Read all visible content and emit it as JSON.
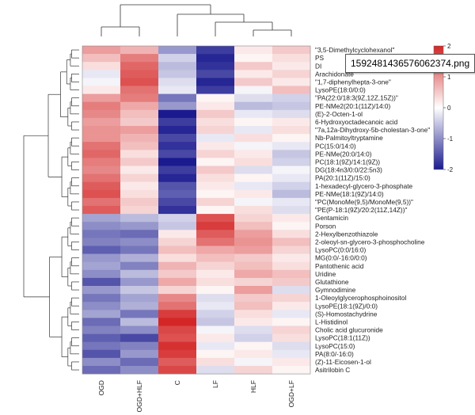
{
  "chart_data": {
    "type": "heatmap",
    "columns": [
      "OGD",
      "OGD+HLF",
      "C",
      "LF",
      "HLF",
      "OGD+LF"
    ],
    "rows": [
      "\"3,5-Dimethylcyclohexanol\"",
      "PS",
      "DI",
      "Arachidonate",
      "\"1,7-diphenylhepta-3-one\"",
      "LysoPE(18:0/0:0)",
      "\"PA(22:0/18:3(9Z,12Z,15Z))\"",
      "PE-NMe2(20:1(11Z)/14:0)",
      "(E)-2-Octen-1-ol",
      "6-Hydroxyoctadecanoic acid",
      "\"7a,12a-Dihydroxy-5b-cholestan-3-one\"",
      "Nb-Palmitoyltryptamine",
      "PC(15:0/14:0)",
      "PE-NMe(20:0/14:0)",
      "PC(18:1(9Z)/14:1(9Z))",
      "DG(18:4n3/0:0/22:5n3)",
      "PA(20:1(11Z)/15:0)",
      "1-hexadecyl-glycero-3-phosphate",
      "PE-NMe(18:1(9Z)/14:0)",
      "\"PC(MonoMe(9,5)/MonoMe(9,5))\"",
      "\"PE(P-18:1(9Z)/20:2(11Z,14Z))\"",
      "Gentamicin",
      "Porson",
      "2-Hexylbenzothiazole",
      "2-oleoyl-sn-glycero-3-phosphocholine",
      "LysoPC(0:0/16:0)",
      "MG(0:0/-16:0/0:0)",
      "Pantothenic acid",
      "Uridine",
      "Glutathione",
      "Gymnodimine",
      "1-Oleoylglycerophosphoinositol",
      "LysoPE(18:1(9Z)/0:0)",
      "(S)-Homostachydrine",
      "L-Histidinol",
      "Cholic acid glucuronide",
      "LysoPC(18:1(11Z))",
      "LysoPC(15:0)",
      "PA(8:0/-16:0)",
      "(Z)-11-Eicosen-1-ol",
      "Asitrilobin C"
    ],
    "values": [
      [
        0.9,
        0.7,
        -0.9,
        -1.7,
        0.2,
        0.5
      ],
      [
        0.6,
        1.2,
        -0.4,
        -1.9,
        0.1,
        0.3
      ],
      [
        0.3,
        1.4,
        -0.6,
        -1.8,
        0.5,
        0.2
      ],
      [
        -0.2,
        1.5,
        -0.5,
        -1.6,
        0.2,
        0.4
      ],
      [
        -0.1,
        1.6,
        -0.3,
        -1.9,
        0.5,
        0.2
      ],
      [
        0.2,
        1.3,
        -0.2,
        -1.7,
        -0.1,
        0.6
      ],
      [
        0.9,
        1.2,
        -1.2,
        0.1,
        -0.3,
        -0.4
      ],
      [
        1.2,
        0.8,
        -0.9,
        0.2,
        -0.6,
        -0.5
      ],
      [
        1.1,
        0.6,
        -2.0,
        0.5,
        -0.2,
        -0.3
      ],
      [
        0.9,
        0.5,
        -1.7,
        0.3,
        0.1,
        0.2
      ],
      [
        1.0,
        0.9,
        -1.9,
        0.4,
        -0.2,
        0.3
      ],
      [
        1.0,
        0.7,
        -1.6,
        -0.2,
        0.3,
        0.1
      ],
      [
        1.3,
        0.6,
        -1.8,
        0.2,
        -0.1,
        -0.2
      ],
      [
        1.4,
        0.3,
        -1.6,
        0.4,
        0.2,
        -0.5
      ],
      [
        1.2,
        0.5,
        -2.0,
        0.1,
        0.3,
        -0.4
      ],
      [
        1.1,
        0.2,
        -1.7,
        0.5,
        -0.3,
        -0.1
      ],
      [
        1.3,
        0.4,
        -1.9,
        0.3,
        0.1,
        -0.2
      ],
      [
        1.5,
        0.2,
        -1.5,
        0.2,
        -0.2,
        -0.4
      ],
      [
        1.6,
        0.3,
        -1.4,
        0.1,
        0.2,
        -0.6
      ],
      [
        1.3,
        0.5,
        -1.6,
        0.4,
        -0.1,
        -0.2
      ],
      [
        1.5,
        0.4,
        -1.8,
        0.1,
        0.3,
        -0.3
      ],
      [
        -0.8,
        -0.6,
        -0.4,
        1.6,
        0.4,
        0.2
      ],
      [
        -1.0,
        -0.9,
        -0.5,
        1.8,
        0.6,
        0.1
      ],
      [
        -1.2,
        -1.3,
        0.2,
        1.5,
        0.9,
        0.3
      ],
      [
        -1.1,
        -1.0,
        0.4,
        1.3,
        1.0,
        0.6
      ],
      [
        -1.4,
        -1.2,
        0.6,
        0.8,
        0.9,
        0.4
      ],
      [
        -0.9,
        -0.7,
        0.3,
        0.6,
        0.5,
        0.2
      ],
      [
        -0.8,
        -1.1,
        0.7,
        0.4,
        0.6,
        0.3
      ],
      [
        -1.0,
        -0.6,
        0.5,
        0.2,
        0.8,
        0.6
      ],
      [
        -1.5,
        -0.9,
        0.8,
        0.3,
        0.4,
        0.5
      ],
      [
        -0.9,
        -0.5,
        0.4,
        0.1,
        0.9,
        -0.3
      ],
      [
        -1.2,
        -0.8,
        1.1,
        -0.3,
        0.5,
        0.4
      ],
      [
        -1.0,
        -0.7,
        1.3,
        -0.2,
        0.6,
        0.2
      ],
      [
        -0.8,
        -1.2,
        1.8,
        -0.4,
        0.3,
        -0.2
      ],
      [
        -1.3,
        -0.6,
        2.0,
        -0.5,
        0.2,
        0.1
      ],
      [
        -1.1,
        -1.0,
        1.7,
        -0.1,
        -0.3,
        0.4
      ],
      [
        -1.4,
        -1.6,
        1.6,
        0.2,
        -0.4,
        0.3
      ],
      [
        -1.2,
        -1.1,
        1.9,
        -0.2,
        0.1,
        -0.3
      ],
      [
        -1.5,
        -0.9,
        1.8,
        0.1,
        0.2,
        -0.2
      ],
      [
        -1.0,
        -1.3,
        1.5,
        0.3,
        -0.1,
        0.2
      ],
      [
        -1.3,
        -1.0,
        1.7,
        -0.3,
        0.4,
        0.1
      ]
    ],
    "colorbar": {
      "min": -2,
      "max": 2,
      "ticks": [
        "2",
        "1",
        "0",
        "-1",
        "-2"
      ],
      "colors": {
        "low": "#1b1b8f",
        "mid": "#ffffff",
        "high": "#d42626"
      }
    },
    "title": "",
    "xlabel": "",
    "ylabel": ""
  },
  "tooltip": {
    "text": "1592481436576062374.png"
  }
}
